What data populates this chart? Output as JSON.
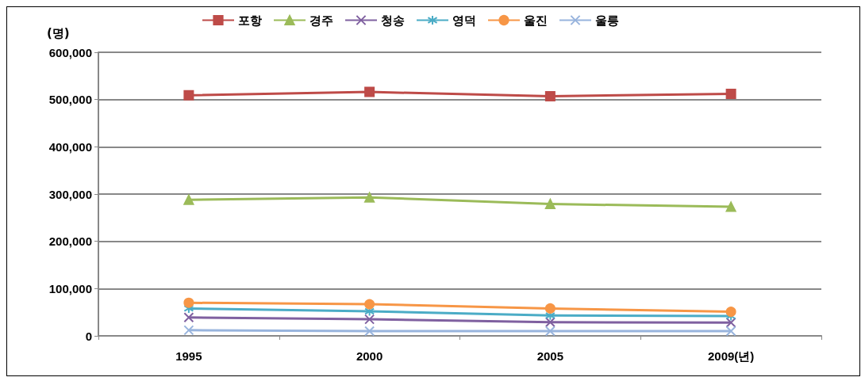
{
  "chart_data": {
    "type": "line",
    "ylabel": "(명)",
    "categories": [
      "1995",
      "2000",
      "2005",
      "2009(년)"
    ],
    "series": [
      {
        "name": "포항",
        "color": "#be4b48",
        "marker": "square",
        "values": [
          509000,
          516000,
          507000,
          512000
        ]
      },
      {
        "name": "경주",
        "color": "#9bbb59",
        "marker": "triangle",
        "values": [
          288000,
          293000,
          279000,
          273000
        ]
      },
      {
        "name": "청송",
        "color": "#7f60a0",
        "marker": "cross",
        "values": [
          39000,
          35000,
          29000,
          28000
        ]
      },
      {
        "name": "영덕",
        "color": "#4bacc6",
        "marker": "star",
        "values": [
          58000,
          52000,
          43000,
          42000
        ]
      },
      {
        "name": "울진",
        "color": "#f79646",
        "marker": "circle",
        "values": [
          70000,
          67000,
          58000,
          51000
        ]
      },
      {
        "name": "울릉",
        "color": "#98b4dd",
        "marker": "cross",
        "values": [
          12000,
          10000,
          10000,
          10000
        ]
      }
    ],
    "ylim": [
      0,
      600000
    ],
    "yticks": [
      0,
      {
        "value": 100000,
        "label": "100,000"
      },
      {
        "value": 200000,
        "label": "200,000"
      },
      {
        "value": 300000,
        "label": "300,000"
      },
      {
        "value": 400000,
        "label": "400,000"
      },
      {
        "value": 500000,
        "label": "500,000"
      },
      {
        "value": 600000,
        "label": "600,000"
      }
    ],
    "grid": "y",
    "legend": "top"
  }
}
